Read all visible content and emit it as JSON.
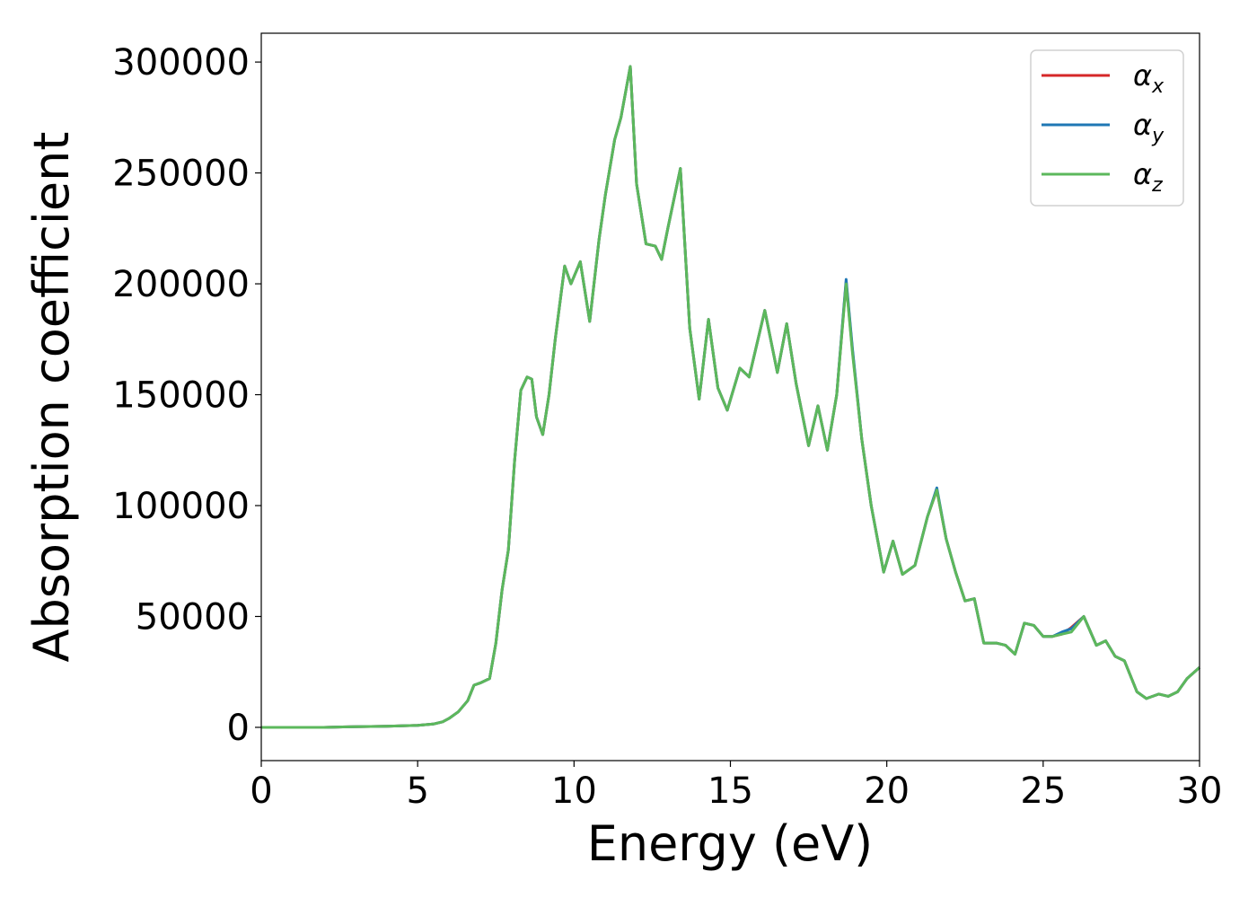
{
  "chart_data": {
    "type": "line",
    "title": "",
    "xlabel": "Energy (eV)",
    "ylabel": "Absorption coefficient",
    "xlim": [
      0,
      30
    ],
    "ylim": [
      -15000,
      313000
    ],
    "xticks": [
      0,
      5,
      10,
      15,
      20,
      25,
      30
    ],
    "xtick_labels": [
      "0",
      "5",
      "10",
      "15",
      "20",
      "25",
      "30"
    ],
    "yticks": [
      0,
      50000,
      100000,
      150000,
      200000,
      250000,
      300000
    ],
    "ytick_labels": [
      "0",
      "50000",
      "100000",
      "150000",
      "200000",
      "250000",
      "300000"
    ],
    "grid": false,
    "legend_position": "top-right",
    "x": [
      0,
      1,
      2,
      3,
      4,
      5,
      5.5,
      5.8,
      6.0,
      6.3,
      6.6,
      6.8,
      7.0,
      7.3,
      7.5,
      7.7,
      7.9,
      8.1,
      8.3,
      8.5,
      8.65,
      8.8,
      9.0,
      9.2,
      9.4,
      9.7,
      9.9,
      10.2,
      10.5,
      10.8,
      11.0,
      11.3,
      11.5,
      11.8,
      12.0,
      12.3,
      12.6,
      12.8,
      13.0,
      13.4,
      13.7,
      14.0,
      14.3,
      14.6,
      14.9,
      15.3,
      15.6,
      16.1,
      16.5,
      16.8,
      17.1,
      17.5,
      17.8,
      18.1,
      18.4,
      18.7,
      18.9,
      19.2,
      19.5,
      19.9,
      20.2,
      20.5,
      20.9,
      21.3,
      21.6,
      21.9,
      22.2,
      22.5,
      22.8,
      23.1,
      23.5,
      23.8,
      24.1,
      24.4,
      24.7,
      25.0,
      25.3,
      25.6,
      25.9,
      26.3,
      26.7,
      27.0,
      27.3,
      27.6,
      28.0,
      28.3,
      28.7,
      29.0,
      29.3,
      29.6,
      30.0
    ],
    "series": [
      {
        "name": "αx",
        "color": "#d62728",
        "values": [
          0,
          0,
          0,
          300,
          500,
          900,
          1500,
          2500,
          4000,
          7000,
          12000,
          19000,
          20000,
          22000,
          38000,
          62000,
          80000,
          120000,
          152000,
          158000,
          157000,
          140000,
          132000,
          150000,
          175000,
          208000,
          200000,
          210000,
          183000,
          220000,
          240000,
          265000,
          275000,
          298000,
          245000,
          218000,
          217000,
          211000,
          225000,
          252000,
          180000,
          148000,
          184000,
          153000,
          143000,
          162000,
          158000,
          188000,
          160000,
          182000,
          155000,
          127000,
          145000,
          125000,
          150000,
          201000,
          170000,
          130000,
          100000,
          70000,
          84000,
          69000,
          73000,
          95000,
          107000,
          85000,
          70000,
          57000,
          58000,
          38000,
          38000,
          37000,
          33000,
          47000,
          46000,
          41000,
          41000,
          42000,
          45000,
          50000,
          37000,
          39000,
          32000,
          30000,
          16000,
          13000,
          15000,
          14000,
          16000,
          22000,
          27000
        ]
      },
      {
        "name": "αy",
        "color": "#1f77b4",
        "values": [
          0,
          0,
          0,
          300,
          500,
          900,
          1500,
          2500,
          4000,
          7000,
          12000,
          19000,
          20000,
          22000,
          38000,
          62000,
          80000,
          120000,
          152000,
          158000,
          157000,
          140000,
          132000,
          150000,
          175000,
          208000,
          200000,
          210000,
          183000,
          220000,
          240000,
          265000,
          275000,
          298000,
          245000,
          218000,
          217000,
          211000,
          225000,
          252000,
          180000,
          148000,
          184000,
          153000,
          143000,
          162000,
          158000,
          188000,
          160000,
          182000,
          155000,
          127000,
          145000,
          125000,
          150000,
          202000,
          171000,
          130000,
          100000,
          70000,
          84000,
          69000,
          73000,
          95000,
          108000,
          85000,
          70000,
          57000,
          58000,
          38000,
          38000,
          37000,
          33000,
          47000,
          46000,
          41000,
          41000,
          43000,
          44500,
          50000,
          37000,
          39000,
          32000,
          30000,
          16000,
          13000,
          15000,
          14000,
          16000,
          22000,
          27000
        ]
      },
      {
        "name": "αz",
        "color": "#5cb85c",
        "values": [
          0,
          0,
          0,
          300,
          500,
          900,
          1500,
          2500,
          4000,
          7000,
          12000,
          19000,
          20000,
          22000,
          38000,
          62000,
          80000,
          120000,
          152000,
          158000,
          157000,
          140000,
          132000,
          150000,
          175000,
          208000,
          200000,
          210000,
          183000,
          220000,
          240000,
          265000,
          275000,
          298000,
          245000,
          218000,
          217000,
          211000,
          225000,
          252000,
          180000,
          148000,
          184000,
          153000,
          143000,
          162000,
          158000,
          188000,
          160000,
          182000,
          155000,
          127000,
          145000,
          125000,
          150000,
          200000,
          169000,
          130000,
          100000,
          70000,
          84000,
          69000,
          73000,
          95000,
          107000,
          85000,
          70000,
          57000,
          58000,
          38000,
          38000,
          37000,
          33000,
          47000,
          46000,
          41000,
          41000,
          42000,
          43000,
          50000,
          37000,
          39000,
          32000,
          30000,
          16000,
          13000,
          15000,
          14000,
          16000,
          22000,
          27000
        ]
      }
    ],
    "legend": [
      {
        "base": "α",
        "sub": "x"
      },
      {
        "base": "α",
        "sub": "y"
      },
      {
        "base": "α",
        "sub": "z"
      }
    ]
  }
}
